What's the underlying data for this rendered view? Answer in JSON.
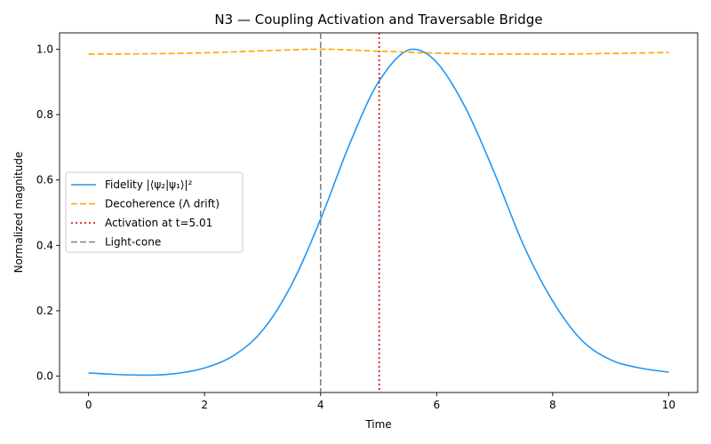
{
  "chart_data": {
    "type": "line",
    "title": "N3 — Coupling Activation and Traversable Bridge",
    "xlabel": "Time",
    "ylabel": "Normalized magnitude",
    "xlim": [
      -0.5,
      10.5
    ],
    "ylim": [
      -0.05,
      1.05
    ],
    "xticks": [
      0,
      2,
      4,
      6,
      8,
      10
    ],
    "yticks": [
      0.0,
      0.2,
      0.4,
      0.6,
      0.8,
      1.0
    ],
    "xtick_labels": [
      "0",
      "2",
      "4",
      "6",
      "8",
      "10"
    ],
    "ytick_labels": [
      "0.0",
      "0.2",
      "0.4",
      "0.6",
      "0.8",
      "1.0"
    ],
    "grid": false,
    "legend_position": "center-left",
    "series": [
      {
        "name": "Fidelity |⟨ψ₂|ψ₁⟩|²",
        "color": "#2196f3",
        "style": "solid",
        "x": [
          0,
          0.5,
          1.0,
          1.5,
          2.0,
          2.5,
          3.0,
          3.5,
          4.0,
          4.5,
          5.0,
          5.6,
          6.0,
          6.5,
          7.0,
          7.5,
          8.0,
          8.5,
          9.0,
          9.5,
          10.0
        ],
        "y": [
          0.01,
          0.005,
          0.003,
          0.008,
          0.025,
          0.063,
          0.14,
          0.28,
          0.48,
          0.71,
          0.9,
          1.0,
          0.96,
          0.82,
          0.62,
          0.4,
          0.23,
          0.11,
          0.05,
          0.025,
          0.012
        ]
      },
      {
        "name": "Decoherence (Λ drift)",
        "color": "#ffa500",
        "style": "dashed",
        "x": [
          0,
          1,
          2,
          3,
          4,
          5,
          6,
          7,
          8,
          9,
          10
        ],
        "y": [
          0.985,
          0.986,
          0.989,
          0.995,
          1.0,
          0.994,
          0.988,
          0.985,
          0.985,
          0.987,
          0.99
        ]
      }
    ],
    "vlines": [
      {
        "name": "Activation at t=5.01",
        "x": 5.01,
        "color": "#cc0000",
        "style": "dotted"
      },
      {
        "name": "Light-cone",
        "x": 4.0,
        "color": "#808080",
        "style": "dashed"
      }
    ]
  }
}
